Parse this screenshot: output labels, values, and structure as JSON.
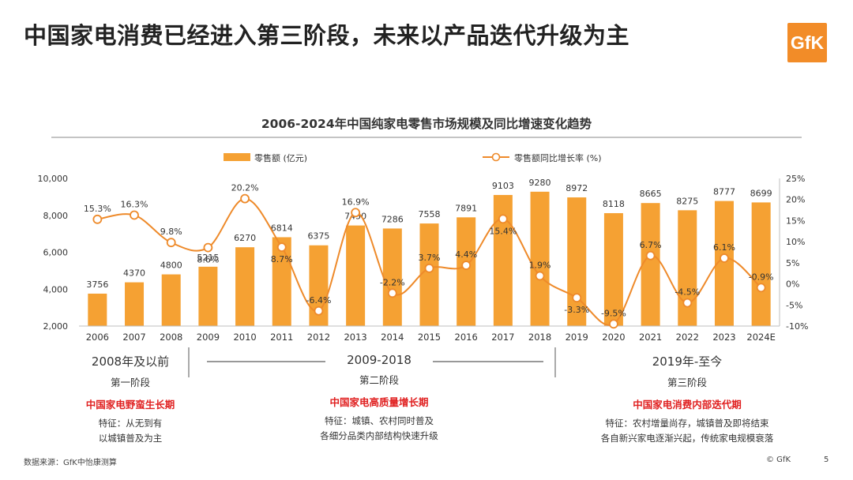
{
  "slide_title": "中国家电消费已经进入第三阶段，未来以产品迭代升级为主",
  "logo_text": "GfK",
  "chart_data": {
    "type": "bar+line",
    "title": "2006-2024年中国纯家电零售市场规模及同比增速变化趋势",
    "legend": [
      "零售额 (亿元)",
      "零售额同比增长率 (%)"
    ],
    "legend_position": "top",
    "categories": [
      "2006",
      "2007",
      "2008",
      "2009",
      "2010",
      "2011",
      "2012",
      "2013",
      "2014",
      "2015",
      "2016",
      "2017",
      "2018",
      "2019",
      "2020",
      "2021",
      "2022",
      "2023",
      "2024E"
    ],
    "bar_values": [
      3756,
      4370,
      4800,
      5215,
      6270,
      6814,
      6375,
      7450,
      7286,
      7558,
      7891,
      9103,
      9280,
      8972,
      8118,
      8665,
      8275,
      8777,
      8699
    ],
    "growth_values": [
      15.3,
      16.3,
      9.8,
      8.6,
      20.2,
      8.7,
      -6.4,
      16.9,
      -2.2,
      3.7,
      4.4,
      15.4,
      1.9,
      -3.3,
      -9.5,
      6.7,
      -4.5,
      6.1,
      -0.9
    ],
    "growth_labels": [
      "15.3%",
      "16.3%",
      "9.8%",
      "8.6%",
      "20.2%",
      "8.7%",
      "-6.4%",
      "16.9%",
      "-2.2%",
      "3.7%",
      "4.4%",
      "15.4%",
      "1.9%",
      "-3.3%",
      "-9.5%",
      "6.7%",
      "-4.5%",
      "6.1%",
      "-0.9%"
    ],
    "left_axis": {
      "min": 2000,
      "max": 10000,
      "ticks": [
        "2,000",
        "4,000",
        "6,000",
        "8,000",
        "10,000"
      ]
    },
    "right_axis": {
      "min": -10,
      "max": 25,
      "ticks": [
        "-10%",
        "-5%",
        "0%",
        "5%",
        "10%",
        "15%",
        "20%",
        "25%"
      ]
    },
    "colors": {
      "bar": "#F5A133",
      "line": "#EE8A2A",
      "marker_fill": "#ffffff",
      "label": "#333333",
      "axis": "#bfbfbf"
    },
    "grid": false
  },
  "stages": [
    {
      "range": "2008年及以前",
      "name": "第一阶段",
      "theme": "中国家电野蛮生长期",
      "feature_lines": [
        "特征：从无到有",
        "以城镇普及为主"
      ]
    },
    {
      "range": "2009-2018",
      "name": "第二阶段",
      "theme": "中国家电高质量增长期",
      "feature_lines": [
        "特征：城镇、农村同时普及",
        "各细分品类内部结构快速升级"
      ]
    },
    {
      "range": "2019年-至今",
      "name": "第三阶段",
      "theme": "中国家电消费内部迭代期",
      "feature_lines": [
        "特征：农村增量尚存，城镇普及即将结束",
        "各自新兴家电逐渐兴起，传统家电规模衰落"
      ]
    }
  ],
  "footer": {
    "source": "数据来源：GfK中怡康测算",
    "copyright": "© GfK",
    "page": "5"
  }
}
